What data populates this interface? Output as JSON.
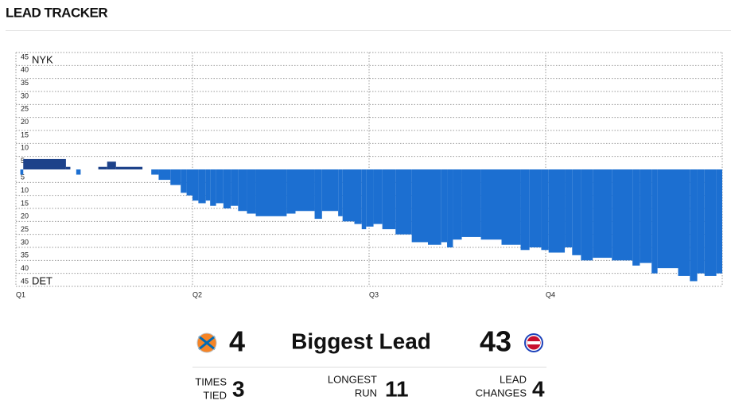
{
  "header": {
    "title": "LEAD TRACKER"
  },
  "chart_data": {
    "type": "step-area",
    "top_label": "NYK",
    "bottom_label": "DET",
    "color_positive": "#1d428a",
    "color_negative": "#1c6fd1",
    "x": [
      0,
      0.3,
      0.5,
      3.4,
      3.7,
      4.1,
      4.4,
      5.6,
      6.2,
      6.8,
      8.6,
      9.2,
      9.7,
      10.5,
      11.2,
      11.6,
      12,
      12.4,
      12.9,
      13.2,
      13.6,
      14.1,
      14.6,
      15.1,
      15.7,
      16.3,
      18.4,
      19,
      20.3,
      20.8,
      21.9,
      22.2,
      23,
      23.5,
      23.8,
      24.3,
      24.9,
      25.8,
      26.9,
      28,
      28.9,
      29.3,
      29.7,
      30.3,
      31.6,
      33,
      34.3,
      34.9,
      35.7,
      36.2,
      37.3,
      37.8,
      38.4,
      39.2,
      40.5,
      41.9,
      42.4,
      43.2,
      43.6,
      45,
      45.8,
      46.3,
      46.8,
      47.6
    ],
    "values": [
      0,
      -2,
      4,
      1,
      0,
      -2,
      0,
      1,
      3,
      1,
      0,
      -2,
      -4,
      -6,
      -9,
      -10,
      -12,
      -13,
      -12,
      -14,
      -13,
      -15,
      -14,
      -16,
      -17,
      -18,
      -17,
      -16,
      -19,
      -16,
      -18,
      -20,
      -21,
      -23,
      -22,
      -21,
      -23,
      -25,
      -28,
      -29,
      -28,
      -30,
      -27,
      -26,
      -27,
      -29,
      -31,
      -30,
      -31,
      -32,
      -30,
      -33,
      -35,
      -34,
      -35,
      -37,
      -36,
      -40,
      -38,
      -41,
      -43,
      -40,
      -41,
      -40
    ],
    "xlim": [
      0,
      48
    ],
    "xticks": [
      {
        "value": 0,
        "label": "Q1"
      },
      {
        "value": 12,
        "label": "Q2"
      },
      {
        "value": 24,
        "label": "Q3"
      },
      {
        "value": 36,
        "label": "Q4"
      }
    ],
    "ylim": [
      -45,
      45
    ],
    "yticks": [
      45,
      40,
      35,
      30,
      25,
      20,
      15,
      10,
      5,
      {
        "value": -5,
        "label": "5"
      },
      {
        "value": -10,
        "label": "10"
      },
      {
        "value": -15,
        "label": "15"
      },
      {
        "value": -20,
        "label": "20"
      },
      {
        "value": -25,
        "label": "25"
      },
      {
        "value": -30,
        "label": "30"
      },
      {
        "value": -35,
        "label": "35"
      },
      {
        "value": -40,
        "label": "40"
      },
      {
        "value": -45,
        "label": "45"
      }
    ],
    "grid": true
  },
  "stats": {
    "biggest_lead": {
      "label": "Biggest Lead",
      "values": [
        4,
        43
      ]
    },
    "times_tied": {
      "label": [
        "TIMES",
        "TIED"
      ],
      "value": 3
    },
    "longest_run": {
      "label": [
        "LONGEST",
        "RUN"
      ],
      "value": 11
    },
    "lead_changes": {
      "label": [
        "LEAD",
        "CHANGES"
      ],
      "value": 4
    }
  }
}
